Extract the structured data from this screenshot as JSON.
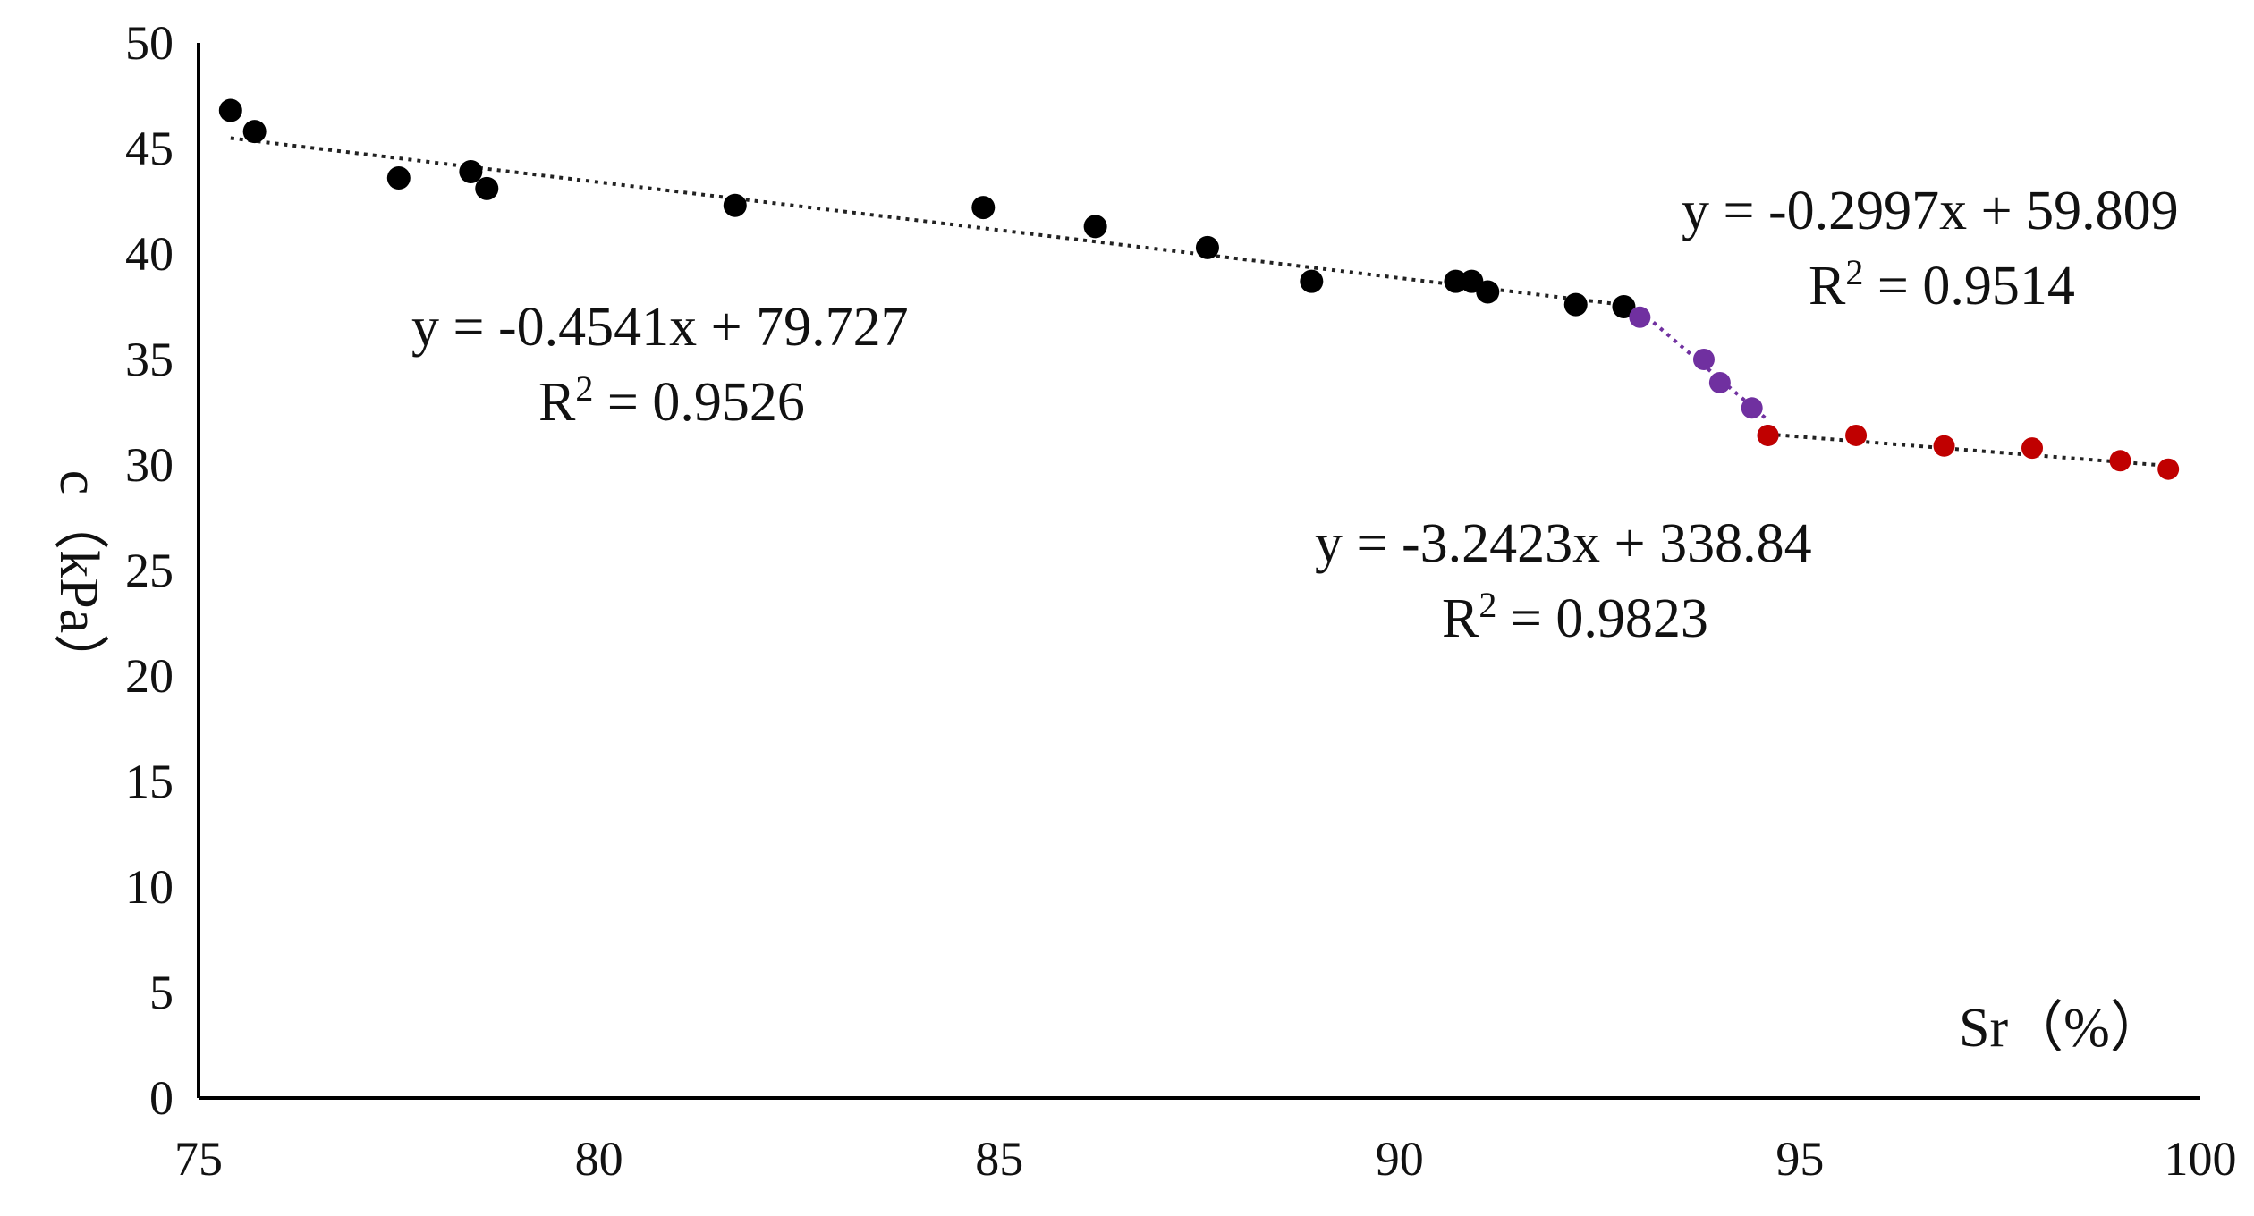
{
  "chart_data": {
    "type": "scatter",
    "xlabel": "Sr（%）",
    "ylabel": "c（kPa）",
    "xlim": [
      75,
      100
    ],
    "ylim": [
      0,
      50
    ],
    "xticks": [
      "75",
      "80",
      "85",
      "90",
      "95",
      "100"
    ],
    "yticks": [
      "0",
      "5",
      "10",
      "15",
      "20",
      "25",
      "30",
      "35",
      "40",
      "45",
      "50"
    ],
    "grid": false,
    "colors": {
      "black": "#000000",
      "purple": "#7030a0",
      "red": "#c00000"
    },
    "series": [
      {
        "color": "black",
        "points": [
          [
            75.4,
            46.8
          ],
          [
            75.7,
            45.8
          ],
          [
            77.5,
            43.6
          ],
          [
            78.4,
            43.9
          ],
          [
            78.6,
            43.1
          ],
          [
            81.7,
            42.3
          ],
          [
            84.8,
            42.2
          ],
          [
            86.2,
            41.3
          ],
          [
            87.6,
            40.3
          ],
          [
            88.9,
            38.7
          ],
          [
            90.7,
            38.7
          ],
          [
            90.9,
            38.7
          ],
          [
            91.1,
            38.2
          ],
          [
            92.2,
            37.6
          ],
          [
            92.8,
            37.5
          ]
        ],
        "trend": {
          "equation": "y = -0.4541x + 79.727",
          "r2_prefix": "R",
          "r2_exp": "2",
          "r2_value": " = 0.9526"
        }
      },
      {
        "color": "purple",
        "points": [
          [
            93.0,
            37.0
          ],
          [
            93.8,
            35.0
          ],
          [
            94.0,
            33.9
          ],
          [
            94.4,
            32.7
          ],
          [
            94.6,
            31.4
          ]
        ],
        "trend": {
          "equation": "y = -3.2423x + 338.84",
          "r2_prefix": "R",
          "r2_exp": "2",
          "r2_value": " = 0.9823"
        }
      },
      {
        "color": "red",
        "points": [
          [
            94.6,
            31.4
          ],
          [
            95.7,
            31.4
          ],
          [
            96.8,
            30.9
          ],
          [
            97.9,
            30.8
          ],
          [
            99.0,
            30.2
          ],
          [
            99.6,
            29.8
          ]
        ],
        "trend": {
          "equation": "y = -0.2997x + 59.809",
          "r2_prefix": "R",
          "r2_exp": "2",
          "r2_value": " = 0.9514"
        }
      }
    ]
  }
}
